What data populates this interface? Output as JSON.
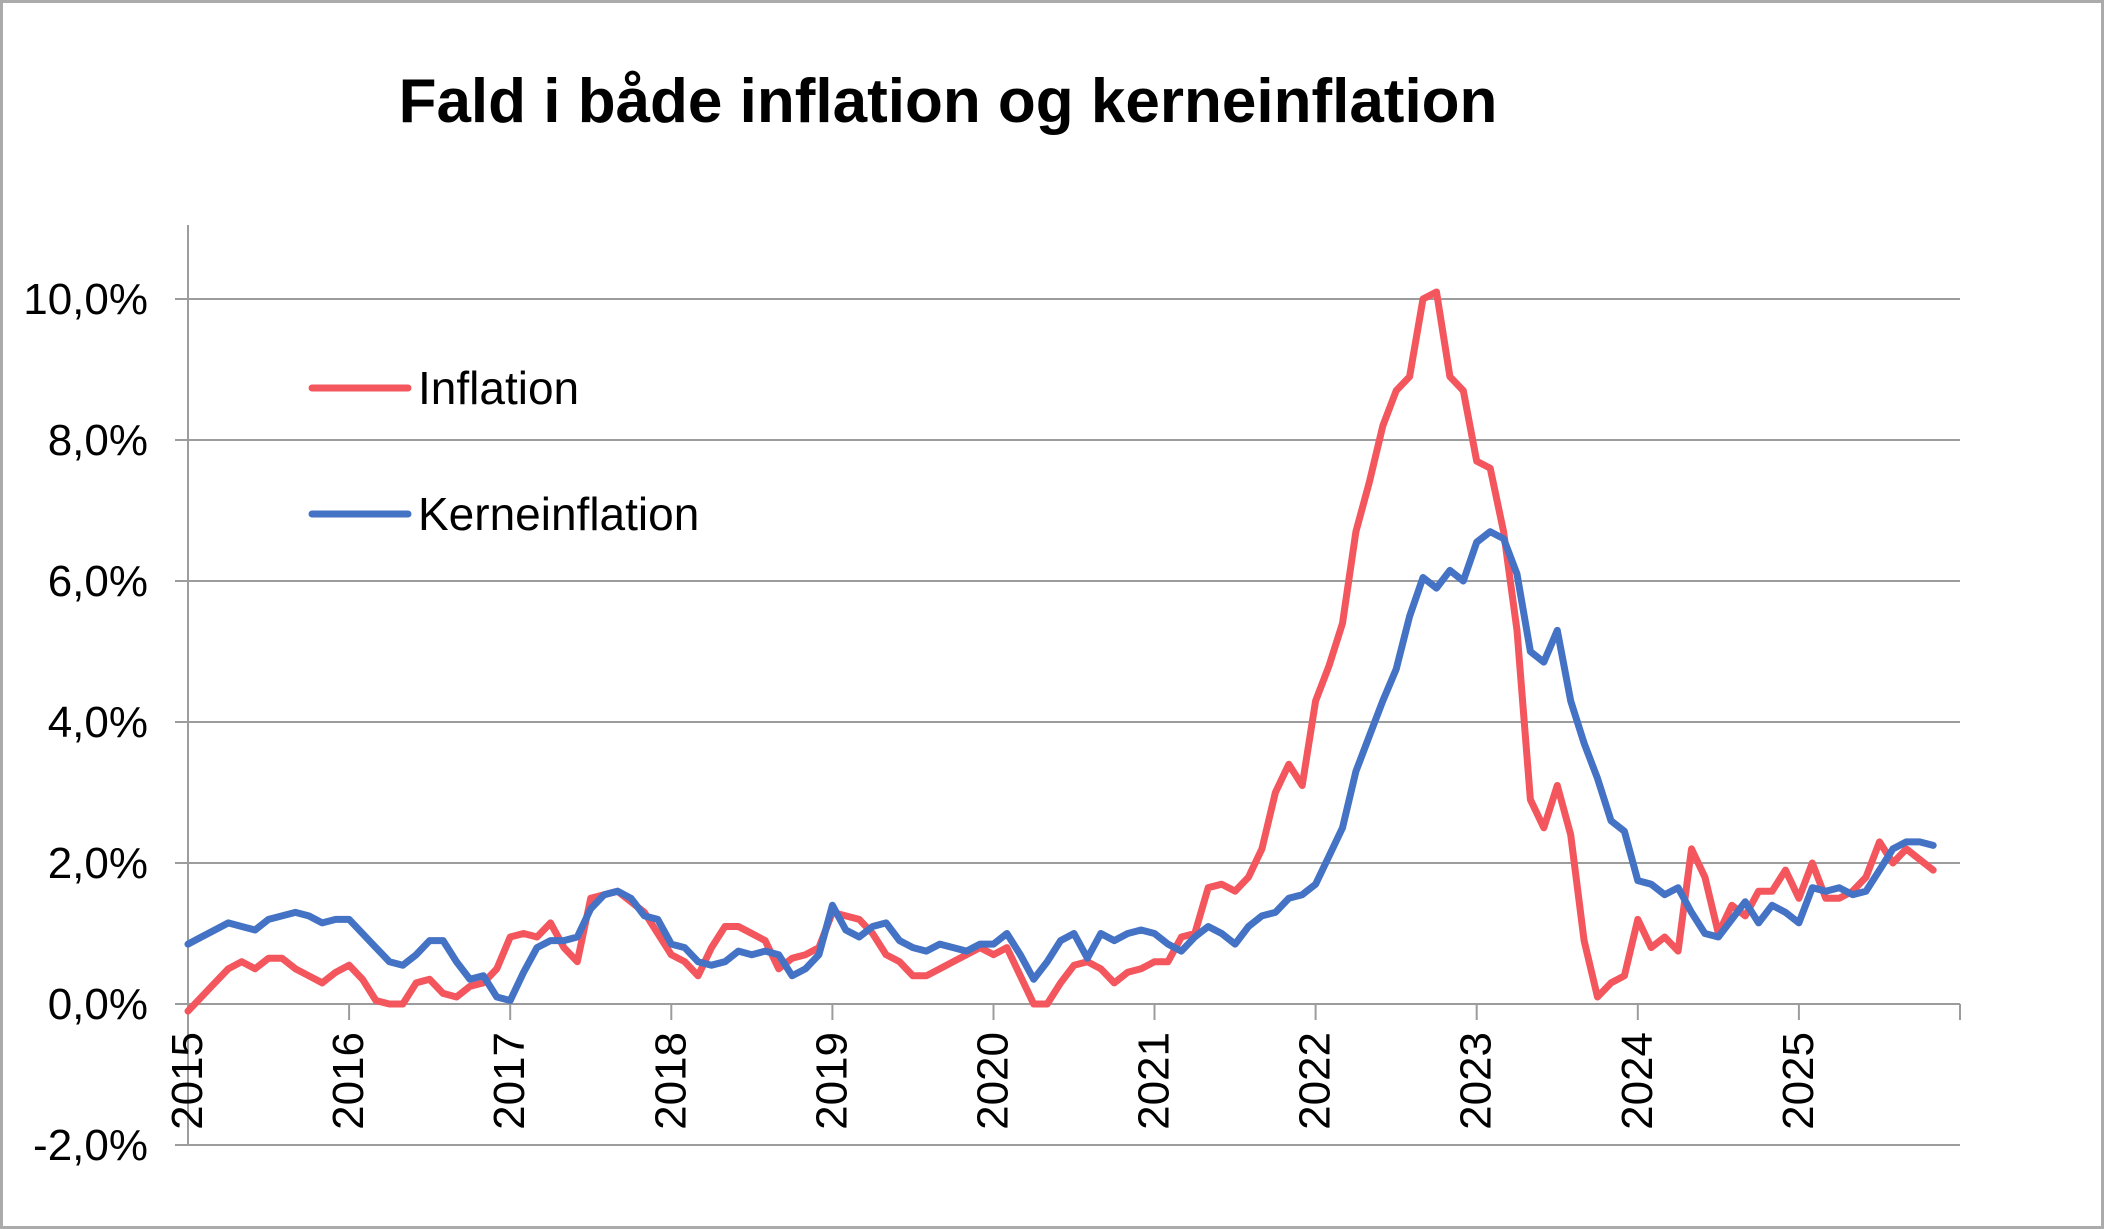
{
  "window": {
    "background": "#FFFFFF",
    "border_color": "#ABABAB"
  },
  "chart_data": {
    "type": "line",
    "title": "Fald i både inflation og kerneinflation",
    "x_frequency": "monthly",
    "x_start": "2015-01",
    "x_end": "2025-11",
    "x_tick_labels": [
      "2015",
      "2016",
      "2017",
      "2018",
      "2019",
      "2020",
      "2021",
      "2022",
      "2023",
      "2024",
      "2025"
    ],
    "y_tick_labels": [
      "-2,0%",
      "0,0%",
      "2,0%",
      "4,0%",
      "6,0%",
      "8,0%",
      "10,0%"
    ],
    "y_tick_values": [
      -2,
      0,
      2,
      4,
      6,
      8,
      10
    ],
    "ylim": [
      -2,
      11.05
    ],
    "y_major_unit": 2,
    "grid": "horizontal-major",
    "legend_position": "inside-upper-left",
    "colors": {
      "grid": "#9C9C9C",
      "axis": "#9C9C9C",
      "text": "#000000"
    },
    "series": [
      {
        "name": "Inflation",
        "color": "#F3565D",
        "values": [
          -0.1,
          0.1,
          0.3,
          0.5,
          0.6,
          0.5,
          0.65,
          0.65,
          0.5,
          0.4,
          0.3,
          0.45,
          0.55,
          0.35,
          0.05,
          0.0,
          0.0,
          0.3,
          0.35,
          0.15,
          0.1,
          0.25,
          0.3,
          0.5,
          0.95,
          1.0,
          0.95,
          1.15,
          0.8,
          0.6,
          1.5,
          1.55,
          1.6,
          1.45,
          1.3,
          1.0,
          0.7,
          0.6,
          0.4,
          0.8,
          1.1,
          1.1,
          1.0,
          0.9,
          0.5,
          0.65,
          0.7,
          0.8,
          1.3,
          1.25,
          1.2,
          1.0,
          0.7,
          0.6,
          0.4,
          0.4,
          0.5,
          0.6,
          0.7,
          0.8,
          0.7,
          0.8,
          0.4,
          0.0,
          0.0,
          0.3,
          0.55,
          0.6,
          0.5,
          0.3,
          0.45,
          0.5,
          0.6,
          0.6,
          0.95,
          1.0,
          1.65,
          1.7,
          1.6,
          1.8,
          2.2,
          3.0,
          3.4,
          3.1,
          4.3,
          4.8,
          5.4,
          6.7,
          7.4,
          8.2,
          8.7,
          8.9,
          10.0,
          10.1,
          8.9,
          8.7,
          7.7,
          7.6,
          6.7,
          5.3,
          2.9,
          2.5,
          3.1,
          2.4,
          0.9,
          0.1,
          0.3,
          0.4,
          1.2,
          0.8,
          0.95,
          0.75,
          2.2,
          1.8,
          1.0,
          1.4,
          1.25,
          1.6,
          1.6,
          1.9,
          1.5,
          2.0,
          1.5,
          1.5,
          1.6,
          1.8,
          2.3,
          2.0,
          2.2,
          2.05,
          1.9
        ]
      },
      {
        "name": "Kerneinflation",
        "color": "#4472C4",
        "values": [
          0.85,
          0.95,
          1.05,
          1.15,
          1.1,
          1.05,
          1.2,
          1.25,
          1.3,
          1.25,
          1.15,
          1.2,
          1.2,
          1.0,
          0.8,
          0.6,
          0.55,
          0.7,
          0.9,
          0.9,
          0.6,
          0.35,
          0.4,
          0.1,
          0.05,
          0.45,
          0.8,
          0.9,
          0.9,
          0.95,
          1.35,
          1.55,
          1.6,
          1.5,
          1.25,
          1.2,
          0.85,
          0.8,
          0.6,
          0.55,
          0.6,
          0.75,
          0.7,
          0.75,
          0.7,
          0.4,
          0.5,
          0.7,
          1.4,
          1.05,
          0.95,
          1.1,
          1.15,
          0.9,
          0.8,
          0.75,
          0.85,
          0.8,
          0.75,
          0.85,
          0.85,
          1.0,
          0.7,
          0.35,
          0.6,
          0.9,
          1.0,
          0.65,
          1.0,
          0.9,
          1.0,
          1.05,
          1.0,
          0.85,
          0.75,
          0.95,
          1.1,
          1.0,
          0.85,
          1.1,
          1.25,
          1.3,
          1.5,
          1.55,
          1.7,
          2.1,
          2.5,
          3.3,
          3.8,
          4.3,
          4.75,
          5.5,
          6.05,
          5.9,
          6.15,
          6.0,
          6.55,
          6.7,
          6.6,
          6.1,
          5.0,
          4.85,
          5.3,
          4.3,
          3.7,
          3.2,
          2.6,
          2.45,
          1.75,
          1.7,
          1.55,
          1.65,
          1.3,
          1.0,
          0.95,
          1.2,
          1.45,
          1.15,
          1.4,
          1.3,
          1.15,
          1.65,
          1.6,
          1.65,
          1.55,
          1.6,
          1.9,
          2.2,
          2.3,
          2.3,
          2.25
        ]
      }
    ]
  }
}
